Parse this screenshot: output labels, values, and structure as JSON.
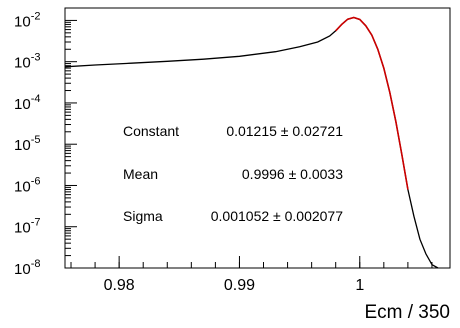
{
  "chart_data": {
    "type": "line",
    "title": "",
    "xlabel": "Ecm / 350",
    "ylabel": "",
    "xlim": [
      0.9755,
      1.0075
    ],
    "ylim": [
      1e-08,
      0.02
    ],
    "y_log_scale": true,
    "x_ticks": [
      {
        "value": 0.98,
        "label": "0.98"
      },
      {
        "value": 0.99,
        "label": "0.99"
      },
      {
        "value": 1.0,
        "label": "1"
      }
    ],
    "y_ticks": [
      {
        "value": 1e-08,
        "label": "10",
        "exp": "-8"
      },
      {
        "value": 1e-07,
        "label": "10",
        "exp": "-7"
      },
      {
        "value": 1e-06,
        "label": "10",
        "exp": "-6"
      },
      {
        "value": 1e-05,
        "label": "10",
        "exp": "-5"
      },
      {
        "value": 0.0001,
        "label": "10",
        "exp": "-4"
      },
      {
        "value": 0.001,
        "label": "10",
        "exp": "-3"
      },
      {
        "value": 0.01,
        "label": "10",
        "exp": "-2"
      }
    ],
    "series": [
      {
        "style": "histogram",
        "color": "#000000",
        "x": [
          0.9755,
          0.978,
          0.981,
          0.984,
          0.987,
          0.99,
          0.993,
          0.995,
          0.9965,
          0.9975,
          0.998,
          0.9985,
          0.999,
          0.9995,
          1.0,
          1.0005,
          1.001,
          1.0015,
          1.002,
          1.0025,
          1.003,
          1.0035,
          1.004,
          1.0045,
          1.005,
          1.0055,
          1.006,
          1.0065
        ],
        "y": [
          0.00075,
          0.00083,
          0.00092,
          0.00102,
          0.00115,
          0.00135,
          0.00175,
          0.0023,
          0.003,
          0.0042,
          0.0056,
          0.008,
          0.0107,
          0.0118,
          0.0105,
          0.0074,
          0.0044,
          0.002,
          0.0007,
          0.00018,
          3.5e-05,
          5.5e-06,
          8e-07,
          1.8e-07,
          5e-08,
          2.2e-08,
          1.2e-08,
          1e-08
        ]
      },
      {
        "style": "fit",
        "color": "#cc0000",
        "x": [
          0.998,
          0.9985,
          0.999,
          0.9995,
          1.0,
          1.0005,
          1.001,
          1.0015,
          1.002,
          1.0025,
          1.003,
          1.0035,
          1.004
        ],
        "y": [
          0.0056,
          0.008,
          0.0107,
          0.0118,
          0.0105,
          0.0074,
          0.0044,
          0.002,
          0.0007,
          0.00018,
          3.5e-05,
          5.5e-06,
          8e-07
        ]
      }
    ],
    "annotations": [
      {
        "name": "Constant",
        "value": "0.01215 ± 0.02721"
      },
      {
        "name": "Mean",
        "value": "0.9996 ± 0.0033"
      },
      {
        "name": "Sigma",
        "value": "0.001052 ± 0.002077"
      }
    ]
  }
}
